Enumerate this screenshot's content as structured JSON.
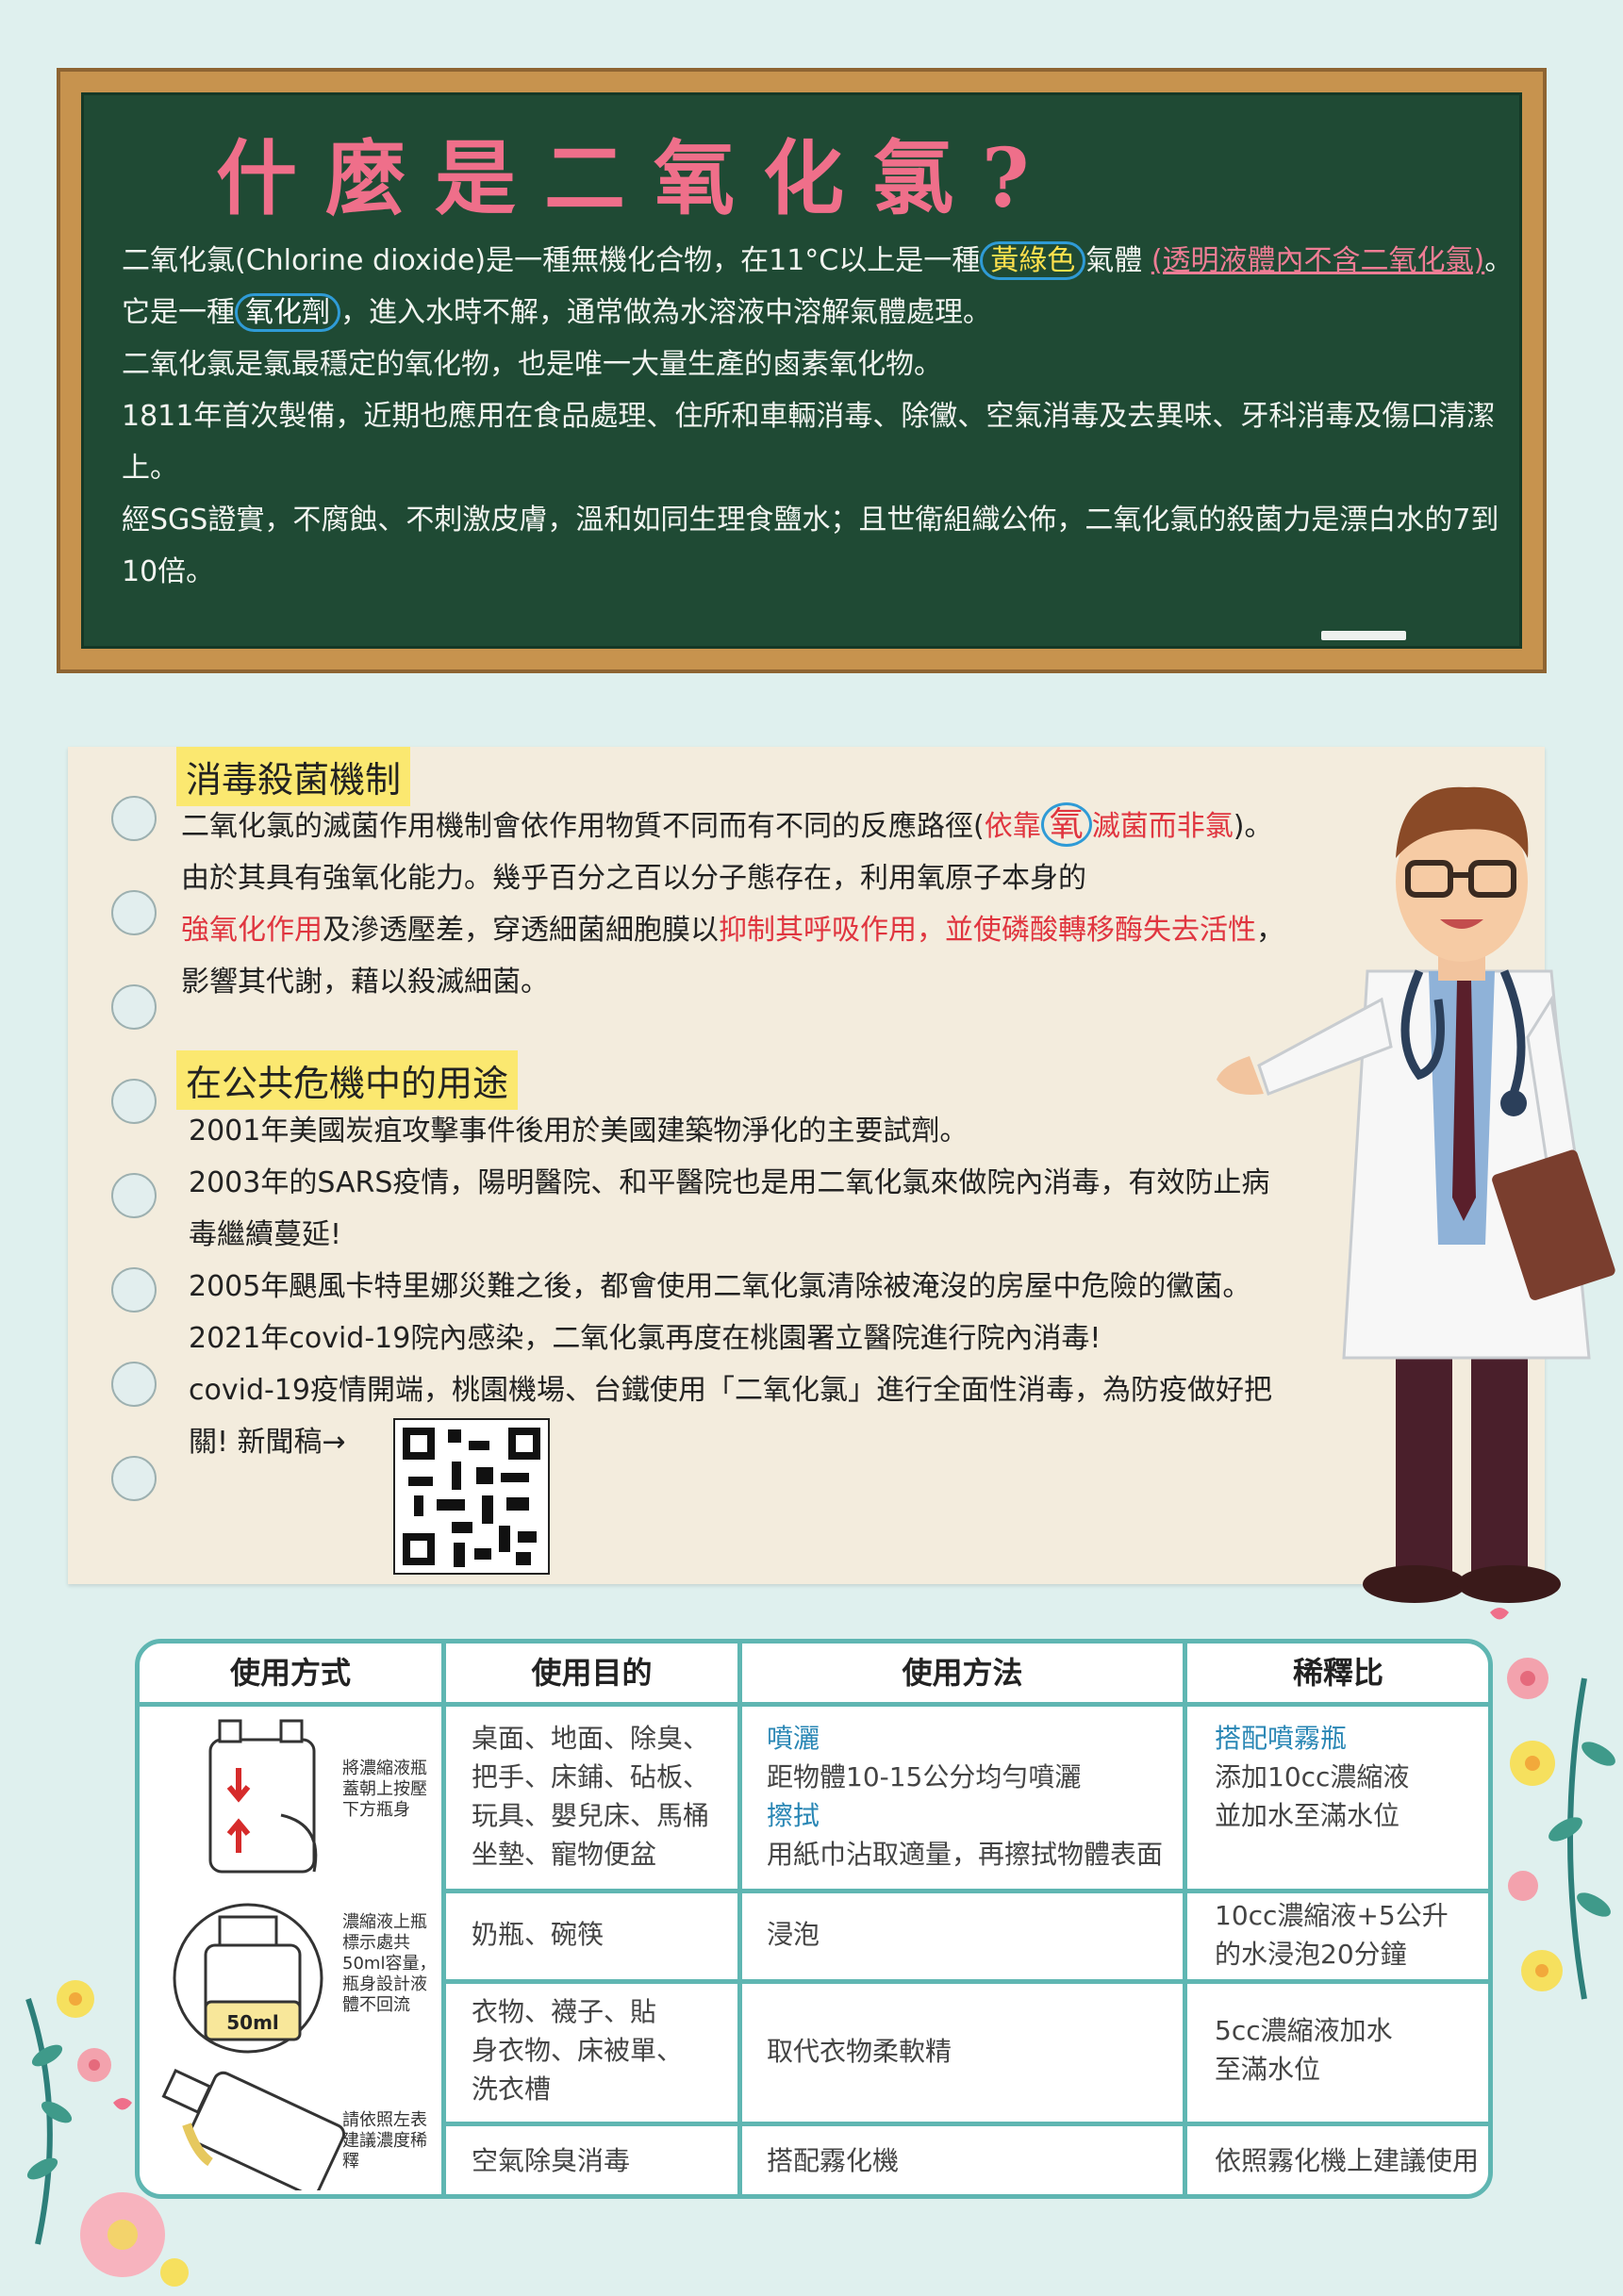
{
  "board": {
    "title": "什麼是二氧化氯?",
    "p1_a": "二氧化氯(Chlorine dioxide)是一種無機化合物，在11°C以上是一種",
    "p1_hl": "黃綠色",
    "p1_b": "氣體",
    "p1_pink": "(透明液體內不含二氧化氯)",
    "p1_c": "。",
    "p2_a": "它是一種",
    "p2_hl": "氧化劑",
    "p2_b": "，進入水時不解，通常做為水溶液中溶解氣體處理。",
    "p3": "二氧化氯是氯最穩定的氧化物，也是唯一大量生產的鹵素氧化物。",
    "p4": "1811年首次製備，近期也應用在食品處理、住所和車輛消毒、除黴、空氣消毒及去異味、牙科消毒及傷口清潔上。",
    "p5": "經SGS證實，不腐蝕、不刺激皮膚，溫和如同生理食鹽水；且世衛組織公佈，二氧化氯的殺菌力是漂白水的7到10倍。"
  },
  "mechanism": {
    "heading": "消毒殺菌機制",
    "l1_a": "二氧化氯的滅菌作用機制會依作用物質不同而有不同的反應路徑(",
    "l1_red1": "依靠",
    "l1_circle": "氧",
    "l1_red2": "滅菌而非氯",
    "l1_b": ")。",
    "l2": "由於其具有強氧化能力。幾乎百分之百以分子態存在，利用氧原子本身的",
    "l3_red1": "強氧化作用",
    "l3_a": "及滲透壓差，穿透細菌細胞膜以",
    "l3_red2": "抑制其呼吸作用，並使磷酸轉移酶失去活性",
    "l3_b": "，",
    "l4": "影響其代謝，藉以殺滅細菌。"
  },
  "usage": {
    "heading": "在公共危機中的用途",
    "items": [
      "2001年美國炭疽攻擊事件後用於美國建築物淨化的主要試劑。",
      "2003年的SARS疫情，陽明醫院、和平醫院也是用二氧化氯來做院內消毒，有效防止病",
      "毒繼續蔓延!",
      "2005年颶風卡特里娜災難之後，都會使用二氧化氯清除被淹沒的房屋中危險的黴菌。",
      "2021年covid-19院內感染，二氧化氯再度在桃園署立醫院進行院內消毒!",
      "covid-19疫情開端，桃園機場、台鐵使用「二氧化氯」進行全面性消毒，為防疫做好把",
      "關!  新聞稿→"
    ]
  },
  "table": {
    "headers": [
      "使用方式",
      "使用目的",
      "使用方法",
      "稀釋比"
    ],
    "howto": {
      "step1": "將濃縮液瓶蓋朝上按壓下方瓶身",
      "step2": "濃縮液上瓶標示處共50ml容量，瓶身設計液體不回流",
      "step2_label": "50ml",
      "step3": "請依照左表建議濃度稀釋"
    },
    "rows": [
      {
        "purpose": [
          "桌面、地面、除臭、",
          "把手、床鋪、砧板、",
          "玩具、嬰兒床、馬桶",
          "坐墊、寵物便盆"
        ],
        "method_h1": "噴灑",
        "method_t1": "距物體10-15公分均勻噴灑",
        "method_h2": "擦拭",
        "method_t2": "用紙巾沾取適量，再擦拭物體表面",
        "ratio_h": "搭配噴霧瓶",
        "ratio": [
          "添加10cc濃縮液",
          "並加水至滿水位"
        ]
      },
      {
        "purpose": [
          "奶瓶、碗筷"
        ],
        "method": "浸泡",
        "ratio": [
          "10cc濃縮液+5公升",
          "的水浸泡20分鐘"
        ]
      },
      {
        "purpose": [
          "衣物、襪子、貼",
          "身衣物、床被單、",
          "洗衣槽"
        ],
        "method": "取代衣物柔軟精",
        "ratio": [
          "5cc濃縮液加水",
          "至滿水位"
        ]
      },
      {
        "purpose": [
          "空氣除臭消毒"
        ],
        "method": "搭配霧化機",
        "ratio": [
          "依照霧化機上建議使用"
        ]
      }
    ]
  },
  "colors": {
    "background": "#dff0ee",
    "board": "#1f4a34",
    "frame": "#c7934e",
    "highlight": "#fbe870",
    "teal": "#5fb6b2",
    "red": "#e0353f"
  }
}
